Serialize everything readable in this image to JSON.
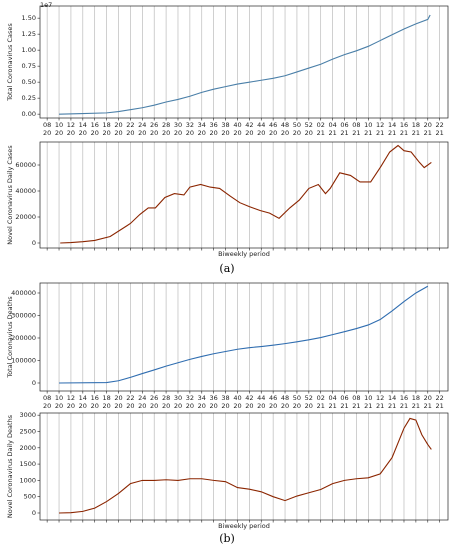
{
  "captions": [
    "(a)",
    "(b)"
  ],
  "chart_data": [
    {
      "type": "line",
      "ylabel": "Total Coronavirus Cases",
      "y_offset_label": "1e7",
      "color": "#4a7fa8",
      "x": [
        1,
        3,
        5,
        6,
        7,
        8,
        9,
        10,
        11,
        12,
        13,
        14,
        15,
        16,
        17,
        18,
        19,
        20,
        21,
        22,
        23,
        24,
        25,
        26,
        27,
        28,
        29,
        30,
        31,
        32,
        32.2
      ],
      "values": [
        0,
        0.01,
        0.02,
        0.04,
        0.07,
        0.1,
        0.14,
        0.19,
        0.23,
        0.28,
        0.34,
        0.39,
        0.43,
        0.47,
        0.5,
        0.53,
        0.56,
        0.6,
        0.66,
        0.72,
        0.78,
        0.86,
        0.93,
        0.99,
        1.06,
        1.15,
        1.24,
        1.33,
        1.41,
        1.48,
        1.55
      ],
      "xlim": [
        -0.6,
        33.7
      ],
      "ylim": [
        -0.06,
        1.69
      ],
      "yticks": [
        {
          "value": 0,
          "label": "0.00"
        },
        {
          "value": 0.25,
          "label": "0.25"
        },
        {
          "value": 0.5,
          "label": "0.50"
        },
        {
          "value": 0.75,
          "label": "0.75"
        },
        {
          "value": 1,
          "label": "1.00"
        },
        {
          "value": 1.25,
          "label": "1.25"
        },
        {
          "value": 1.5,
          "label": "1.50"
        }
      ],
      "xticks": [
        {
          "value": 0,
          "label": "08\n20"
        },
        {
          "value": 1,
          "label": "10\n20"
        },
        {
          "value": 2,
          "label": "12\n20"
        },
        {
          "value": 3,
          "label": "14\n20"
        },
        {
          "value": 4,
          "label": "16\n20"
        },
        {
          "value": 5,
          "label": "18\n20"
        },
        {
          "value": 6,
          "label": "20\n20"
        },
        {
          "value": 7,
          "label": "22\n20"
        },
        {
          "value": 8,
          "label": "24\n20"
        },
        {
          "value": 9,
          "label": "26\n20"
        },
        {
          "value": 10,
          "label": "28\n20"
        },
        {
          "value": 11,
          "label": "30\n20"
        },
        {
          "value": 12,
          "label": "32\n20"
        },
        {
          "value": 13,
          "label": "34\n20"
        },
        {
          "value": 14,
          "label": "36\n20"
        },
        {
          "value": 15,
          "label": "38\n20"
        },
        {
          "value": 16,
          "label": "40\n20"
        },
        {
          "value": 17,
          "label": "42\n20"
        },
        {
          "value": 18,
          "label": "44\n20"
        },
        {
          "value": 19,
          "label": "46\n20"
        },
        {
          "value": 20,
          "label": "48\n20"
        },
        {
          "value": 21,
          "label": "50\n20"
        },
        {
          "value": 22,
          "label": "52\n20"
        },
        {
          "value": 23,
          "label": "02\n21"
        },
        {
          "value": 24,
          "label": "04\n21"
        },
        {
          "value": 25,
          "label": "06\n21"
        },
        {
          "value": 26,
          "label": "08\n21"
        },
        {
          "value": 27,
          "label": "10\n21"
        },
        {
          "value": 28,
          "label": "12\n21"
        },
        {
          "value": 29,
          "label": "14\n21"
        },
        {
          "value": 30,
          "label": "16\n21"
        },
        {
          "value": 31,
          "label": "18\n21"
        },
        {
          "value": 32,
          "label": "20\n21"
        },
        {
          "value": 33,
          "label": "22\n21"
        }
      ],
      "grid": "x"
    },
    {
      "type": "line",
      "ylabel": "Novel Coronavirus Daily Cases",
      "xlabel": "Biweekly period",
      "color": "#8b2500",
      "x": [
        1.1,
        2,
        3,
        4,
        5.3,
        7,
        7.8,
        8.5,
        9.1,
        9.9,
        10.7,
        11.5,
        12,
        12.9,
        13.7,
        14.5,
        15.4,
        16.2,
        17,
        17.9,
        18.7,
        19.5,
        20.4,
        21.2,
        22,
        22.8,
        23.4,
        23.8,
        24.6,
        25.5,
        26.3,
        27.2,
        28,
        28.8,
        29.5,
        30,
        30.6,
        31.3,
        31.7,
        32.3
      ],
      "values": [
        0,
        300,
        1000,
        2000,
        5000,
        15000,
        22000,
        27000,
        27000,
        35000,
        38000,
        37000,
        43000,
        45000,
        43000,
        42000,
        36000,
        31000,
        28000,
        25000,
        23000,
        19000,
        27000,
        33000,
        42000,
        45000,
        38000,
        42000,
        54000,
        52000,
        47000,
        47000,
        58000,
        70000,
        75000,
        71000,
        70000,
        62000,
        58000,
        62000
      ],
      "xlim": [
        -0.6,
        33.7
      ],
      "ylim": [
        -3850,
        77700
      ],
      "yticks": [
        0,
        20000,
        40000,
        60000
      ],
      "xticks": [
        0,
        1,
        2,
        3,
        4,
        5,
        6,
        7,
        8,
        9,
        10,
        11,
        12,
        13,
        14,
        15,
        16,
        17,
        18,
        19,
        20,
        21,
        22,
        23,
        24,
        25,
        26,
        27,
        28,
        29,
        30,
        31,
        32,
        33
      ],
      "xticklabels": false,
      "grid": "x"
    },
    {
      "type": "line",
      "ylabel": "Total Coronavirus Deaths",
      "color": "#2f6db0",
      "x": [
        1,
        5,
        6,
        7,
        8,
        9,
        10,
        11,
        12,
        13,
        14,
        15,
        16,
        17,
        18,
        19,
        20,
        21,
        22,
        23,
        24,
        25,
        26,
        27,
        28,
        29,
        30,
        31,
        32
      ],
      "values": [
        0,
        2000,
        10000,
        25000,
        42000,
        58000,
        75000,
        90000,
        105000,
        118000,
        130000,
        140000,
        150000,
        157000,
        162000,
        168000,
        175000,
        183000,
        192000,
        202000,
        215000,
        228000,
        242000,
        258000,
        282000,
        320000,
        362000,
        400000,
        430000
      ],
      "xlim": [
        -0.6,
        33.7
      ],
      "ylim": [
        -35600,
        444400
      ],
      "yticks": [
        0,
        100000,
        200000,
        300000,
        400000
      ],
      "xticks": [
        {
          "value": 0,
          "label": "08\n20"
        },
        {
          "value": 1,
          "label": "10\n20"
        },
        {
          "value": 2,
          "label": "12\n20"
        },
        {
          "value": 3,
          "label": "14\n20"
        },
        {
          "value": 4,
          "label": "16\n20"
        },
        {
          "value": 5,
          "label": "18\n20"
        },
        {
          "value": 6,
          "label": "20\n20"
        },
        {
          "value": 7,
          "label": "22\n20"
        },
        {
          "value": 8,
          "label": "24\n20"
        },
        {
          "value": 9,
          "label": "26\n20"
        },
        {
          "value": 10,
          "label": "28\n20"
        },
        {
          "value": 11,
          "label": "30\n20"
        },
        {
          "value": 12,
          "label": "32\n20"
        },
        {
          "value": 13,
          "label": "34\n20"
        },
        {
          "value": 14,
          "label": "36\n20"
        },
        {
          "value": 15,
          "label": "38\n20"
        },
        {
          "value": 16,
          "label": "40\n20"
        },
        {
          "value": 17,
          "label": "42\n20"
        },
        {
          "value": 18,
          "label": "44\n20"
        },
        {
          "value": 19,
          "label": "46\n20"
        },
        {
          "value": 20,
          "label": "48\n20"
        },
        {
          "value": 21,
          "label": "50\n20"
        },
        {
          "value": 22,
          "label": "52\n20"
        },
        {
          "value": 23,
          "label": "02\n21"
        },
        {
          "value": 24,
          "label": "04\n21"
        },
        {
          "value": 25,
          "label": "06\n21"
        },
        {
          "value": 26,
          "label": "08\n21"
        },
        {
          "value": 27,
          "label": "10\n21"
        },
        {
          "value": 28,
          "label": "12\n21"
        },
        {
          "value": 29,
          "label": "14\n21"
        },
        {
          "value": 30,
          "label": "16\n21"
        },
        {
          "value": 31,
          "label": "18\n21"
        },
        {
          "value": 32,
          "label": "20\n21"
        },
        {
          "value": 33,
          "label": "22\n21"
        }
      ],
      "grid": "x"
    },
    {
      "type": "line",
      "ylabel": "Novel Coronavirus Daily Deaths",
      "xlabel": "Biweekly period",
      "color": "#8b2500",
      "x": [
        1,
        2,
        3,
        4,
        5,
        6,
        7,
        8,
        9,
        10,
        11,
        12,
        13,
        14,
        15,
        16,
        17,
        18,
        19,
        20,
        21,
        22,
        23,
        24,
        25,
        26,
        27,
        28,
        29,
        30,
        30.5,
        31,
        31.5,
        32,
        32.3
      ],
      "values": [
        0,
        10,
        50,
        150,
        350,
        600,
        900,
        1000,
        1000,
        1020,
        1000,
        1050,
        1050,
        1000,
        960,
        780,
        730,
        650,
        500,
        380,
        520,
        620,
        720,
        900,
        1000,
        1050,
        1080,
        1200,
        1700,
        2600,
        2900,
        2850,
        2400,
        2100,
        1950
      ],
      "xlim": [
        -0.6,
        33.7
      ],
      "ylim": [
        -215,
        3067
      ],
      "yticks": [
        0,
        500,
        1000,
        1500,
        2000,
        2500,
        3000
      ],
      "xticks": [
        0,
        1,
        2,
        3,
        4,
        5,
        6,
        7,
        8,
        9,
        10,
        11,
        12,
        13,
        14,
        15,
        16,
        17,
        18,
        19,
        20,
        21,
        22,
        23,
        24,
        25,
        26,
        27,
        28,
        29,
        30,
        31,
        32,
        33
      ],
      "xticklabels": false,
      "grid": "x"
    }
  ]
}
